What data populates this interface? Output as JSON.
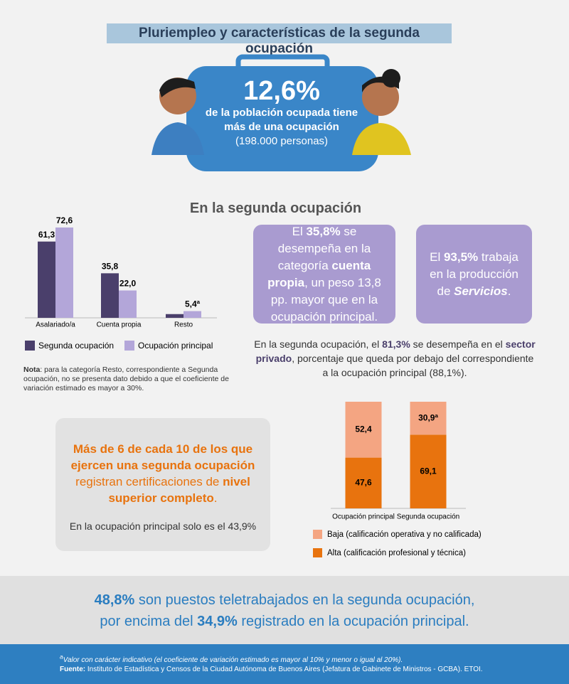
{
  "header": {
    "title": "Pluriempleo y características de la segunda ocupación"
  },
  "highlight": {
    "value": "12,6%",
    "line1": "de la población ocupada tiene",
    "line2": "más de una ocupación",
    "line3": "(198.000 personas)"
  },
  "section_title": "En la segunda ocupación",
  "note": {
    "label": "Nota",
    "text": ": para la categoría Resto, correspondiente a Segunda ocupación, no se presenta dato debido a que el coeficiente de variación estimado es mayor a 30%."
  },
  "card_cuenta_propia": {
    "parts": [
      "El ",
      "35,8%",
      " se desempeña en la categoría ",
      "cuenta propia",
      ", un peso 13,8 pp. mayor que en la ocupación principal."
    ]
  },
  "card_servicios": {
    "parts": [
      "El ",
      "93,5%",
      " trabaja en la producción de ",
      "Servicios",
      "."
    ]
  },
  "sector": {
    "parts": [
      "En la segunda ocupación, el ",
      "81,3%",
      " se desempeña en el ",
      "sector privado",
      ", porcentaje que queda por debajo del correspondiente a la ocupación principal (88,1%)."
    ]
  },
  "certification": {
    "parts": [
      "Más de 6 de cada 10 de los que ejercen una segunda ocupación",
      " registran certificaciones de ",
      "nivel superior completo",
      "."
    ],
    "subtext": "En la ocupación principal solo es el 43,9%"
  },
  "telework": {
    "line1": [
      "48,8%",
      " son puestos teletrabajados en la segunda ocupación,"
    ],
    "line2": [
      "por encima del ",
      "34,9%",
      " registrado en la ocupación principal."
    ]
  },
  "footer": {
    "mark": "a",
    "footnote": "Valor con carácter indicativo (el coeficiente de variación estimado es mayor al 10% y menor o igual al 20%).",
    "source_label": "Fuente:",
    "source": " Instituto de Estadística y Censos de la Ciudad Autónoma de Buenos Aires (Jefatura de Gabinete de Ministros - GCBA). ETOI."
  },
  "chart_data": [
    {
      "type": "bar",
      "categories": [
        "Asalariado/a",
        "Cuenta propia",
        "Resto"
      ],
      "series": [
        {
          "name": "Segunda ocupación",
          "color": "#4a3f6b",
          "values": [
            61.3,
            35.8,
            3.0
          ],
          "value_labels": [
            "61,3",
            "35,8",
            null
          ]
        },
        {
          "name": "Ocupación principal",
          "color": "#b3a6d9",
          "values": [
            72.6,
            22.0,
            5.4
          ],
          "value_labels": [
            "72,6",
            "22,0",
            "5,4ª"
          ]
        }
      ]
    },
    {
      "type": "stacked_bar",
      "categories": [
        "Ocupación principal",
        "Segunda ocupación"
      ],
      "series": [
        {
          "name": "Baja (calificación operativa y no calificada)",
          "color": "#f4a582",
          "values": [
            52.4,
            30.9
          ],
          "value_labels": [
            "52,4",
            "30,9ª"
          ]
        },
        {
          "name": "Alta (calificación profesional y técnica)",
          "color": "#e8730e",
          "values": [
            47.6,
            69.1
          ],
          "value_labels": [
            "47,6",
            "69,1"
          ]
        }
      ]
    }
  ]
}
